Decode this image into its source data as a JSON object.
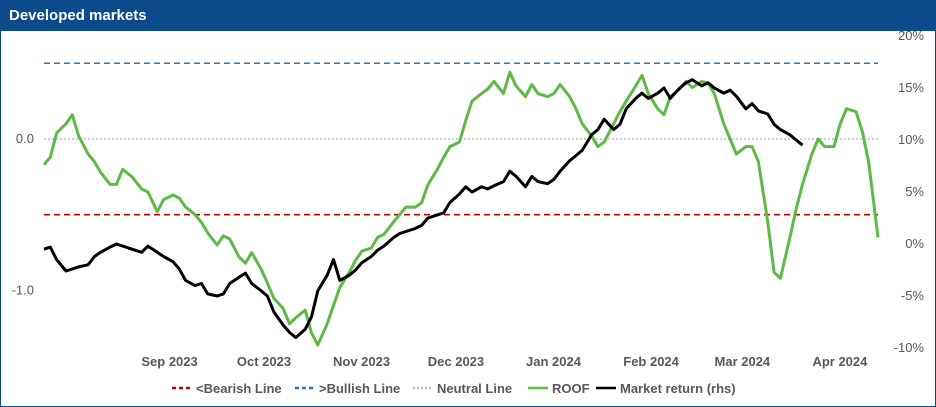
{
  "header": {
    "title": "Developed markets"
  },
  "chart_data": {
    "type": "line",
    "title": "Developed markets",
    "x_tick_labels": [
      "Sep 2023",
      "Oct 2023",
      "Nov 2023",
      "Dec 2023",
      "Jan 2024",
      "Feb 2024",
      "Mar 2024",
      "Apr 2024"
    ],
    "left_axis": {
      "tick_labels": [
        "0.0",
        "-1.0"
      ],
      "ticks": [
        0.0,
        -1.0
      ],
      "range": [
        -1.38,
        0.68
      ]
    },
    "right_axis": {
      "tick_labels": [
        "20%",
        "15%",
        "10%",
        "5%",
        "0%",
        "-5%",
        "-10%"
      ],
      "ticks": [
        20,
        15,
        10,
        5,
        0,
        -5,
        -10
      ],
      "range": [
        -10,
        20
      ]
    },
    "grid": false,
    "legend_position": "bottom",
    "colors": {
      "bearish": "#c00000",
      "bullish": "#2e75b6",
      "neutral": "#bfbfbf",
      "roof": "#5fb946",
      "market": "#000000",
      "title_bar": "#0b4a8b"
    },
    "reference_lines": [
      {
        "name": "<Bearish Line",
        "value": -0.5
      },
      {
        "name": ">Bullish Line",
        "value": 0.5
      },
      {
        "name": "Neutral Line",
        "value": 0.0
      }
    ],
    "series": [
      {
        "name": "ROOF",
        "axis": "left",
        "points": [
          [
            "2023-08-01",
            -0.17
          ],
          [
            "2023-08-03",
            -0.12
          ],
          [
            "2023-08-05",
            0.04
          ],
          [
            "2023-08-08",
            0.1
          ],
          [
            "2023-08-10",
            0.16
          ],
          [
            "2023-08-12",
            0.02
          ],
          [
            "2023-08-15",
            -0.1
          ],
          [
            "2023-08-17",
            -0.15
          ],
          [
            "2023-08-19",
            -0.22
          ],
          [
            "2023-08-22",
            -0.3
          ],
          [
            "2023-08-24",
            -0.3
          ],
          [
            "2023-08-26",
            -0.2
          ],
          [
            "2023-08-29",
            -0.25
          ],
          [
            "2023-09-01",
            -0.33
          ],
          [
            "2023-09-03",
            -0.35
          ],
          [
            "2023-09-06",
            -0.48
          ],
          [
            "2023-09-08",
            -0.4
          ],
          [
            "2023-09-11",
            -0.37
          ],
          [
            "2023-09-13",
            -0.39
          ],
          [
            "2023-09-15",
            -0.45
          ],
          [
            "2023-09-18",
            -0.5
          ],
          [
            "2023-09-20",
            -0.55
          ],
          [
            "2023-09-22",
            -0.62
          ],
          [
            "2023-09-25",
            -0.7
          ],
          [
            "2023-09-27",
            -0.64
          ],
          [
            "2023-09-29",
            -0.66
          ],
          [
            "2023-10-02",
            -0.78
          ],
          [
            "2023-10-04",
            -0.82
          ],
          [
            "2023-10-06",
            -0.75
          ],
          [
            "2023-10-09",
            -0.86
          ],
          [
            "2023-10-11",
            -0.95
          ],
          [
            "2023-10-13",
            -1.05
          ],
          [
            "2023-10-16",
            -1.12
          ],
          [
            "2023-10-18",
            -1.22
          ],
          [
            "2023-10-20",
            -1.18
          ],
          [
            "2023-10-23",
            -1.13
          ],
          [
            "2023-10-25",
            -1.28
          ],
          [
            "2023-10-27",
            -1.36
          ],
          [
            "2023-10-30",
            -1.22
          ],
          [
            "2023-11-01",
            -1.1
          ],
          [
            "2023-11-03",
            -0.98
          ],
          [
            "2023-11-06",
            -0.88
          ],
          [
            "2023-11-08",
            -0.8
          ],
          [
            "2023-11-10",
            -0.74
          ],
          [
            "2023-11-13",
            -0.72
          ],
          [
            "2023-11-15",
            -0.65
          ],
          [
            "2023-11-17",
            -0.63
          ],
          [
            "2023-11-20",
            -0.55
          ],
          [
            "2023-11-22",
            -0.5
          ],
          [
            "2023-11-24",
            -0.45
          ],
          [
            "2023-11-27",
            -0.45
          ],
          [
            "2023-11-29",
            -0.42
          ],
          [
            "2023-12-01",
            -0.3
          ],
          [
            "2023-12-04",
            -0.2
          ],
          [
            "2023-12-06",
            -0.12
          ],
          [
            "2023-12-08",
            -0.05
          ],
          [
            "2023-12-11",
            -0.02
          ],
          [
            "2023-12-13",
            0.12
          ],
          [
            "2023-12-15",
            0.25
          ],
          [
            "2023-12-18",
            0.3
          ],
          [
            "2023-12-20",
            0.33
          ],
          [
            "2023-12-22",
            0.38
          ],
          [
            "2023-12-25",
            0.3
          ],
          [
            "2023-12-27",
            0.44
          ],
          [
            "2023-12-29",
            0.35
          ],
          [
            "2024-01-01",
            0.28
          ],
          [
            "2024-01-03",
            0.36
          ],
          [
            "2024-01-05",
            0.3
          ],
          [
            "2024-01-08",
            0.28
          ],
          [
            "2024-01-10",
            0.3
          ],
          [
            "2024-01-12",
            0.36
          ],
          [
            "2024-01-15",
            0.28
          ],
          [
            "2024-01-17",
            0.2
          ],
          [
            "2024-01-19",
            0.1
          ],
          [
            "2024-01-22",
            0.02
          ],
          [
            "2024-01-24",
            -0.05
          ],
          [
            "2024-01-26",
            -0.02
          ],
          [
            "2024-01-29",
            0.1
          ],
          [
            "2024-01-31",
            0.18
          ],
          [
            "2024-02-02",
            0.25
          ],
          [
            "2024-02-05",
            0.35
          ],
          [
            "2024-02-07",
            0.42
          ],
          [
            "2024-02-09",
            0.3
          ],
          [
            "2024-02-12",
            0.2
          ],
          [
            "2024-02-14",
            0.16
          ],
          [
            "2024-02-16",
            0.28
          ],
          [
            "2024-02-19",
            0.33
          ],
          [
            "2024-02-21",
            0.38
          ],
          [
            "2024-02-23",
            0.34
          ],
          [
            "2024-02-26",
            0.38
          ],
          [
            "2024-02-28",
            0.37
          ],
          [
            "2024-03-01",
            0.3
          ],
          [
            "2024-03-04",
            0.1
          ],
          [
            "2024-03-06",
            0.0
          ],
          [
            "2024-03-08",
            -0.1
          ],
          [
            "2024-03-11",
            -0.05
          ],
          [
            "2024-03-13",
            -0.05
          ],
          [
            "2024-03-15",
            -0.15
          ],
          [
            "2024-03-18",
            -0.55
          ],
          [
            "2024-03-20",
            -0.88
          ],
          [
            "2024-03-22",
            -0.92
          ],
          [
            "2024-03-25",
            -0.65
          ],
          [
            "2024-03-27",
            -0.46
          ],
          [
            "2024-03-29",
            -0.3
          ],
          [
            "2024-04-01",
            -0.1
          ],
          [
            "2024-04-03",
            0.0
          ],
          [
            "2024-04-05",
            -0.05
          ],
          [
            "2024-04-08",
            -0.05
          ],
          [
            "2024-04-10",
            0.1
          ],
          [
            "2024-04-12",
            0.2
          ],
          [
            "2024-04-15",
            0.18
          ],
          [
            "2024-04-17",
            0.05
          ],
          [
            "2024-04-19",
            -0.15
          ],
          [
            "2024-04-22",
            -0.65
          ]
        ]
      },
      {
        "name": "Market return (rhs)",
        "axis": "right",
        "points": [
          [
            "2023-08-01",
            -0.5
          ],
          [
            "2023-08-03",
            -0.3
          ],
          [
            "2023-08-05",
            -1.5
          ],
          [
            "2023-08-08",
            -2.6
          ],
          [
            "2023-08-10",
            -2.4
          ],
          [
            "2023-08-12",
            -2.2
          ],
          [
            "2023-08-15",
            -2.0
          ],
          [
            "2023-08-17",
            -1.2
          ],
          [
            "2023-08-19",
            -0.8
          ],
          [
            "2023-08-22",
            -0.3
          ],
          [
            "2023-08-24",
            0.0
          ],
          [
            "2023-08-26",
            -0.2
          ],
          [
            "2023-08-29",
            -0.5
          ],
          [
            "2023-09-01",
            -0.8
          ],
          [
            "2023-09-03",
            -0.2
          ],
          [
            "2023-09-06",
            -0.8
          ],
          [
            "2023-09-08",
            -1.2
          ],
          [
            "2023-09-11",
            -1.7
          ],
          [
            "2023-09-13",
            -2.4
          ],
          [
            "2023-09-15",
            -3.5
          ],
          [
            "2023-09-18",
            -4.0
          ],
          [
            "2023-09-20",
            -3.8
          ],
          [
            "2023-09-22",
            -4.8
          ],
          [
            "2023-09-25",
            -5.0
          ],
          [
            "2023-09-27",
            -4.8
          ],
          [
            "2023-09-29",
            -3.8
          ],
          [
            "2023-10-02",
            -3.2
          ],
          [
            "2023-10-04",
            -2.8
          ],
          [
            "2023-10-06",
            -3.8
          ],
          [
            "2023-10-09",
            -4.5
          ],
          [
            "2023-10-11",
            -5.0
          ],
          [
            "2023-10-13",
            -6.5
          ],
          [
            "2023-10-16",
            -7.8
          ],
          [
            "2023-10-18",
            -8.5
          ],
          [
            "2023-10-20",
            -9.0
          ],
          [
            "2023-10-23",
            -8.2
          ],
          [
            "2023-10-25",
            -7.0
          ],
          [
            "2023-10-27",
            -4.5
          ],
          [
            "2023-10-30",
            -3.0
          ],
          [
            "2023-11-01",
            -1.5
          ],
          [
            "2023-11-03",
            -3.5
          ],
          [
            "2023-11-06",
            -3.0
          ],
          [
            "2023-11-08",
            -2.5
          ],
          [
            "2023-11-10",
            -1.8
          ],
          [
            "2023-11-13",
            -1.2
          ],
          [
            "2023-11-15",
            -0.6
          ],
          [
            "2023-11-17",
            -0.2
          ],
          [
            "2023-11-20",
            0.6
          ],
          [
            "2023-11-22",
            1.0
          ],
          [
            "2023-11-24",
            1.2
          ],
          [
            "2023-11-27",
            1.5
          ],
          [
            "2023-11-29",
            1.8
          ],
          [
            "2023-12-01",
            2.5
          ],
          [
            "2023-12-04",
            2.8
          ],
          [
            "2023-12-06",
            3.0
          ],
          [
            "2023-12-08",
            4.0
          ],
          [
            "2023-12-11",
            4.8
          ],
          [
            "2023-12-13",
            5.5
          ],
          [
            "2023-12-15",
            5.0
          ],
          [
            "2023-12-18",
            5.5
          ],
          [
            "2023-12-20",
            5.3
          ],
          [
            "2023-12-22",
            5.6
          ],
          [
            "2023-12-25",
            6.0
          ],
          [
            "2023-12-27",
            7.0
          ],
          [
            "2023-12-29",
            6.5
          ],
          [
            "2024-01-01",
            5.5
          ],
          [
            "2024-01-03",
            6.5
          ],
          [
            "2024-01-05",
            6.0
          ],
          [
            "2024-01-08",
            5.8
          ],
          [
            "2024-01-10",
            6.2
          ],
          [
            "2024-01-12",
            7.0
          ],
          [
            "2024-01-15",
            8.0
          ],
          [
            "2024-01-17",
            8.5
          ],
          [
            "2024-01-19",
            9.0
          ],
          [
            "2024-01-22",
            10.5
          ],
          [
            "2024-01-24",
            11.0
          ],
          [
            "2024-01-26",
            12.0
          ],
          [
            "2024-01-29",
            11.0
          ],
          [
            "2024-01-31",
            11.5
          ],
          [
            "2024-02-02",
            13.0
          ],
          [
            "2024-02-05",
            14.0
          ],
          [
            "2024-02-07",
            14.5
          ],
          [
            "2024-02-09",
            14.0
          ],
          [
            "2024-02-12",
            14.5
          ],
          [
            "2024-02-14",
            15.0
          ],
          [
            "2024-02-16",
            14.0
          ],
          [
            "2024-02-19",
            15.0
          ],
          [
            "2024-02-21",
            15.5
          ],
          [
            "2024-02-23",
            15.8
          ],
          [
            "2024-02-26",
            15.2
          ],
          [
            "2024-02-28",
            15.5
          ],
          [
            "2024-03-01",
            15.0
          ],
          [
            "2024-03-04",
            14.5
          ],
          [
            "2024-03-06",
            14.8
          ],
          [
            "2024-03-08",
            14.2
          ],
          [
            "2024-03-11",
            13.0
          ],
          [
            "2024-03-13",
            13.5
          ],
          [
            "2024-03-15",
            12.8
          ],
          [
            "2024-03-18",
            12.5
          ],
          [
            "2024-03-20",
            11.5
          ],
          [
            "2024-03-22",
            11.0
          ],
          [
            "2024-03-25",
            10.5
          ],
          [
            "2024-03-27",
            10.0
          ],
          [
            "2024-03-29",
            9.5
          ]
        ]
      }
    ]
  },
  "legend": {
    "items": [
      {
        "label": "<Bearish Line"
      },
      {
        "label": ">Bullish Line"
      },
      {
        "label": "Neutral Line"
      },
      {
        "label": "ROOF"
      },
      {
        "label": "Market return (rhs)"
      }
    ]
  }
}
